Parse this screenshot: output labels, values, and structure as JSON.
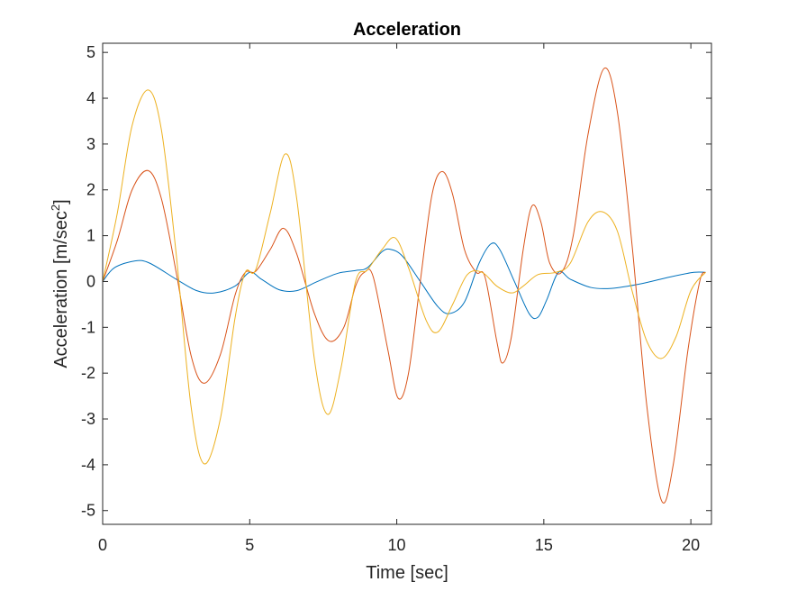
{
  "chart_data": {
    "type": "line",
    "title": "Acceleration",
    "xlabel": "Time [sec]",
    "ylabel_main": "Acceleration [m/sec",
    "ylabel_sup": "2",
    "ylabel_close": "]",
    "xlim": [
      0,
      20.7
    ],
    "ylim": [
      -5.3,
      5.2
    ],
    "xticks": [
      0,
      5,
      10,
      15,
      20
    ],
    "yticks": [
      -5,
      -4,
      -3,
      -2,
      -1,
      0,
      1,
      2,
      3,
      4,
      5
    ],
    "grid": false,
    "series": [
      {
        "color": "#0072BD",
        "points": [
          [
            0,
            0
          ],
          [
            0.4,
            0.3
          ],
          [
            1.1,
            0.45
          ],
          [
            1.6,
            0.4
          ],
          [
            2.5,
            0.05
          ],
          [
            3.2,
            -0.2
          ],
          [
            3.8,
            -0.25
          ],
          [
            4.5,
            -0.1
          ],
          [
            5.0,
            0.2
          ],
          [
            5.4,
            0.05
          ],
          [
            6.0,
            -0.18
          ],
          [
            6.6,
            -0.2
          ],
          [
            7.3,
            0.0
          ],
          [
            8.0,
            0.18
          ],
          [
            8.6,
            0.24
          ],
          [
            9.0,
            0.3
          ],
          [
            9.5,
            0.65
          ],
          [
            9.8,
            0.7
          ],
          [
            10.2,
            0.55
          ],
          [
            10.8,
            0.0
          ],
          [
            11.4,
            -0.55
          ],
          [
            11.8,
            -0.7
          ],
          [
            12.3,
            -0.45
          ],
          [
            12.8,
            0.4
          ],
          [
            13.2,
            0.82
          ],
          [
            13.5,
            0.7
          ],
          [
            14.0,
            0.0
          ],
          [
            14.5,
            -0.7
          ],
          [
            14.8,
            -0.78
          ],
          [
            15.1,
            -0.4
          ],
          [
            15.5,
            0.2
          ],
          [
            15.9,
            0.05
          ],
          [
            16.6,
            -0.13
          ],
          [
            17.3,
            -0.15
          ],
          [
            18.3,
            -0.05
          ],
          [
            19.3,
            0.1
          ],
          [
            20.1,
            0.2
          ],
          [
            20.5,
            0.2
          ]
        ]
      },
      {
        "color": "#D95319",
        "points": [
          [
            0,
            0
          ],
          [
            0.5,
            0.9
          ],
          [
            1.0,
            2.0
          ],
          [
            1.55,
            2.42
          ],
          [
            2.0,
            1.8
          ],
          [
            2.5,
            0.2
          ],
          [
            3.0,
            -1.6
          ],
          [
            3.45,
            -2.22
          ],
          [
            4.0,
            -1.6
          ],
          [
            4.5,
            -0.3
          ],
          [
            4.85,
            0.2
          ],
          [
            5.2,
            0.22
          ],
          [
            5.7,
            0.7
          ],
          [
            6.15,
            1.16
          ],
          [
            6.6,
            0.6
          ],
          [
            7.2,
            -0.7
          ],
          [
            7.7,
            -1.3
          ],
          [
            8.2,
            -1.0
          ],
          [
            8.6,
            -0.1
          ],
          [
            8.9,
            0.2
          ],
          [
            9.2,
            0.1
          ],
          [
            9.7,
            -1.5
          ],
          [
            10.05,
            -2.55
          ],
          [
            10.4,
            -2.0
          ],
          [
            10.8,
            0.0
          ],
          [
            11.2,
            1.9
          ],
          [
            11.55,
            2.4
          ],
          [
            11.9,
            1.9
          ],
          [
            12.3,
            0.7
          ],
          [
            12.7,
            0.2
          ],
          [
            13.0,
            0.1
          ],
          [
            13.4,
            -1.3
          ],
          [
            13.6,
            -1.78
          ],
          [
            13.9,
            -1.2
          ],
          [
            14.3,
            0.7
          ],
          [
            14.6,
            1.65
          ],
          [
            14.9,
            1.3
          ],
          [
            15.2,
            0.4
          ],
          [
            15.6,
            0.2
          ],
          [
            16.0,
            1.0
          ],
          [
            16.5,
            3.2
          ],
          [
            17.05,
            4.65
          ],
          [
            17.5,
            3.7
          ],
          [
            18.0,
            0.8
          ],
          [
            18.5,
            -2.7
          ],
          [
            19.0,
            -4.78
          ],
          [
            19.4,
            -4.0
          ],
          [
            19.9,
            -1.5
          ],
          [
            20.3,
            0.0
          ],
          [
            20.5,
            0.2
          ]
        ]
      },
      {
        "color": "#EDB120",
        "points": [
          [
            0,
            0
          ],
          [
            0.5,
            1.5
          ],
          [
            1.0,
            3.4
          ],
          [
            1.55,
            4.18
          ],
          [
            2.0,
            3.3
          ],
          [
            2.5,
            0.6
          ],
          [
            3.0,
            -2.7
          ],
          [
            3.45,
            -3.98
          ],
          [
            4.0,
            -3.0
          ],
          [
            4.5,
            -0.8
          ],
          [
            4.85,
            0.2
          ],
          [
            5.2,
            0.25
          ],
          [
            5.7,
            1.5
          ],
          [
            6.2,
            2.78
          ],
          [
            6.6,
            1.8
          ],
          [
            7.2,
            -1.7
          ],
          [
            7.65,
            -2.9
          ],
          [
            8.1,
            -1.9
          ],
          [
            8.6,
            0.0
          ],
          [
            9.0,
            0.25
          ],
          [
            9.5,
            0.7
          ],
          [
            9.95,
            0.95
          ],
          [
            10.4,
            0.3
          ],
          [
            11.0,
            -0.85
          ],
          [
            11.4,
            -1.1
          ],
          [
            11.9,
            -0.5
          ],
          [
            12.4,
            0.15
          ],
          [
            12.9,
            0.2
          ],
          [
            13.4,
            -0.1
          ],
          [
            13.9,
            -0.25
          ],
          [
            14.3,
            -0.1
          ],
          [
            14.8,
            0.15
          ],
          [
            15.4,
            0.2
          ],
          [
            15.9,
            0.4
          ],
          [
            16.5,
            1.3
          ],
          [
            17.0,
            1.52
          ],
          [
            17.5,
            1.1
          ],
          [
            18.0,
            -0.2
          ],
          [
            18.5,
            -1.3
          ],
          [
            19.0,
            -1.68
          ],
          [
            19.5,
            -1.2
          ],
          [
            20.0,
            -0.2
          ],
          [
            20.5,
            0.2
          ]
        ]
      }
    ]
  }
}
